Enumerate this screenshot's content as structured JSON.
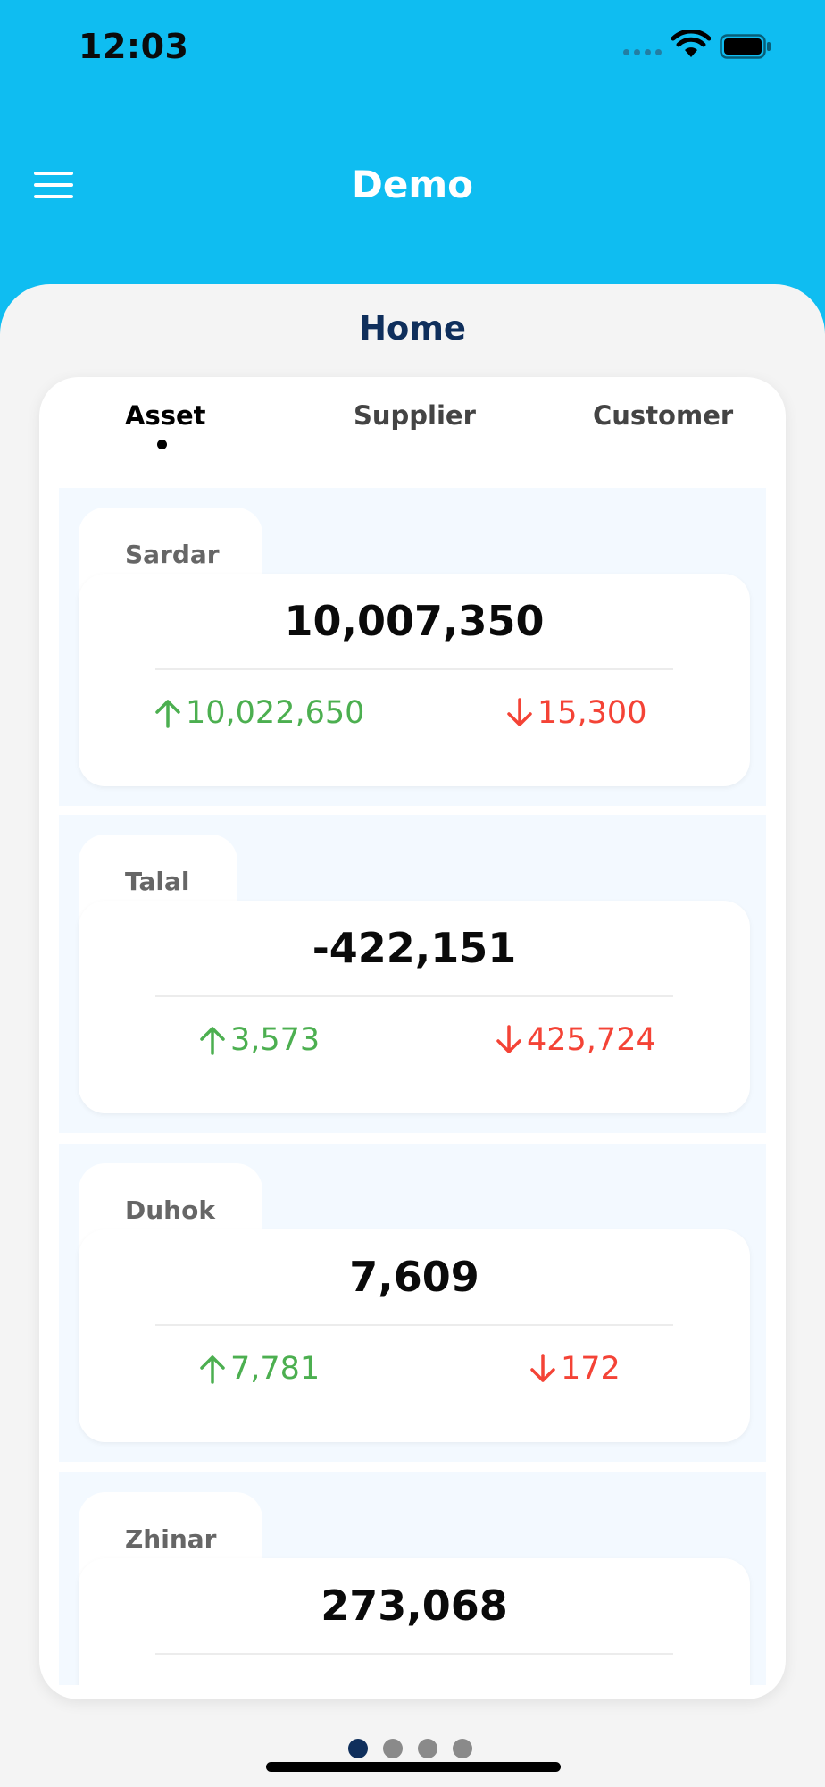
{
  "status": {
    "time": "12:03"
  },
  "nav": {
    "title": "Demo"
  },
  "page": {
    "heading": "Home"
  },
  "tabs": [
    {
      "label": "Asset",
      "active": true
    },
    {
      "label": "Supplier",
      "active": false
    },
    {
      "label": "Customer",
      "active": false
    }
  ],
  "branches": [
    {
      "name": "Sardar",
      "net": "10,007,350",
      "in": "10,022,650",
      "out": "15,300"
    },
    {
      "name": "Talal",
      "net": "-422,151",
      "in": "3,573",
      "out": "425,724"
    },
    {
      "name": "Duhok",
      "net": "7,609",
      "in": "7,781",
      "out": "172"
    },
    {
      "name": "Zhinar",
      "net": "273,068",
      "in": "",
      "out": ""
    }
  ],
  "pager": {
    "count": 4,
    "active": 0
  },
  "colors": {
    "header": "#0fbdf1",
    "heading": "#0f2f5c",
    "incoming": "#4caf50",
    "outgoing": "#f44336"
  }
}
